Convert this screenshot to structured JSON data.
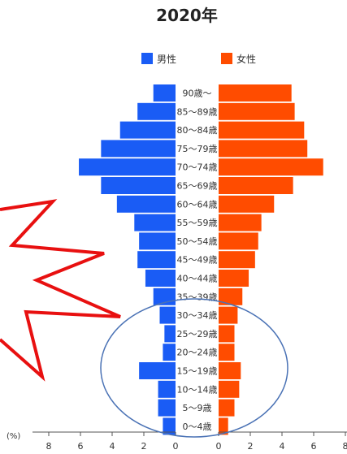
{
  "chart_data": {
    "type": "bar",
    "orientation": "horizontal-population-pyramid",
    "title": "2020年",
    "axis_unit_label": "(%)",
    "categories": [
      "0〜4歳",
      "5〜9歳",
      "10〜14歳",
      "15〜19歳",
      "20〜24歳",
      "25〜29歳",
      "30〜34歳",
      "35〜39歳",
      "40〜44歳",
      "45〜49歳",
      "50〜54歳",
      "55〜59歳",
      "60〜64歳",
      "65〜69歳",
      "70〜74歳",
      "75〜79歳",
      "80〜84歳",
      "85〜89歳",
      "90歳〜"
    ],
    "series": [
      {
        "name": "男性",
        "color": "#1a5cf5",
        "values": [
          0.8,
          1.1,
          1.1,
          2.3,
          0.8,
          0.7,
          1.0,
          1.4,
          1.9,
          2.4,
          2.3,
          2.6,
          3.7,
          4.7,
          6.1,
          4.7,
          3.5,
          2.4,
          1.4
        ]
      },
      {
        "name": "女性",
        "color": "#ff4c00",
        "values": [
          0.6,
          1.0,
          1.3,
          1.4,
          1.0,
          1.0,
          1.2,
          1.5,
          1.9,
          2.3,
          2.5,
          2.7,
          3.5,
          4.7,
          6.6,
          5.6,
          5.4,
          4.8,
          4.6
        ]
      }
    ],
    "left_ticks": [
      "8",
      "6",
      "4",
      "2",
      "0"
    ],
    "right_ticks": [
      "0",
      "2",
      "4",
      "6",
      "8"
    ],
    "xlim": [
      0,
      8
    ],
    "legend_position": "top",
    "annotations": [
      "red-zigzag-lightning-mark",
      "blue-ellipse-around-ages-0-34"
    ]
  }
}
